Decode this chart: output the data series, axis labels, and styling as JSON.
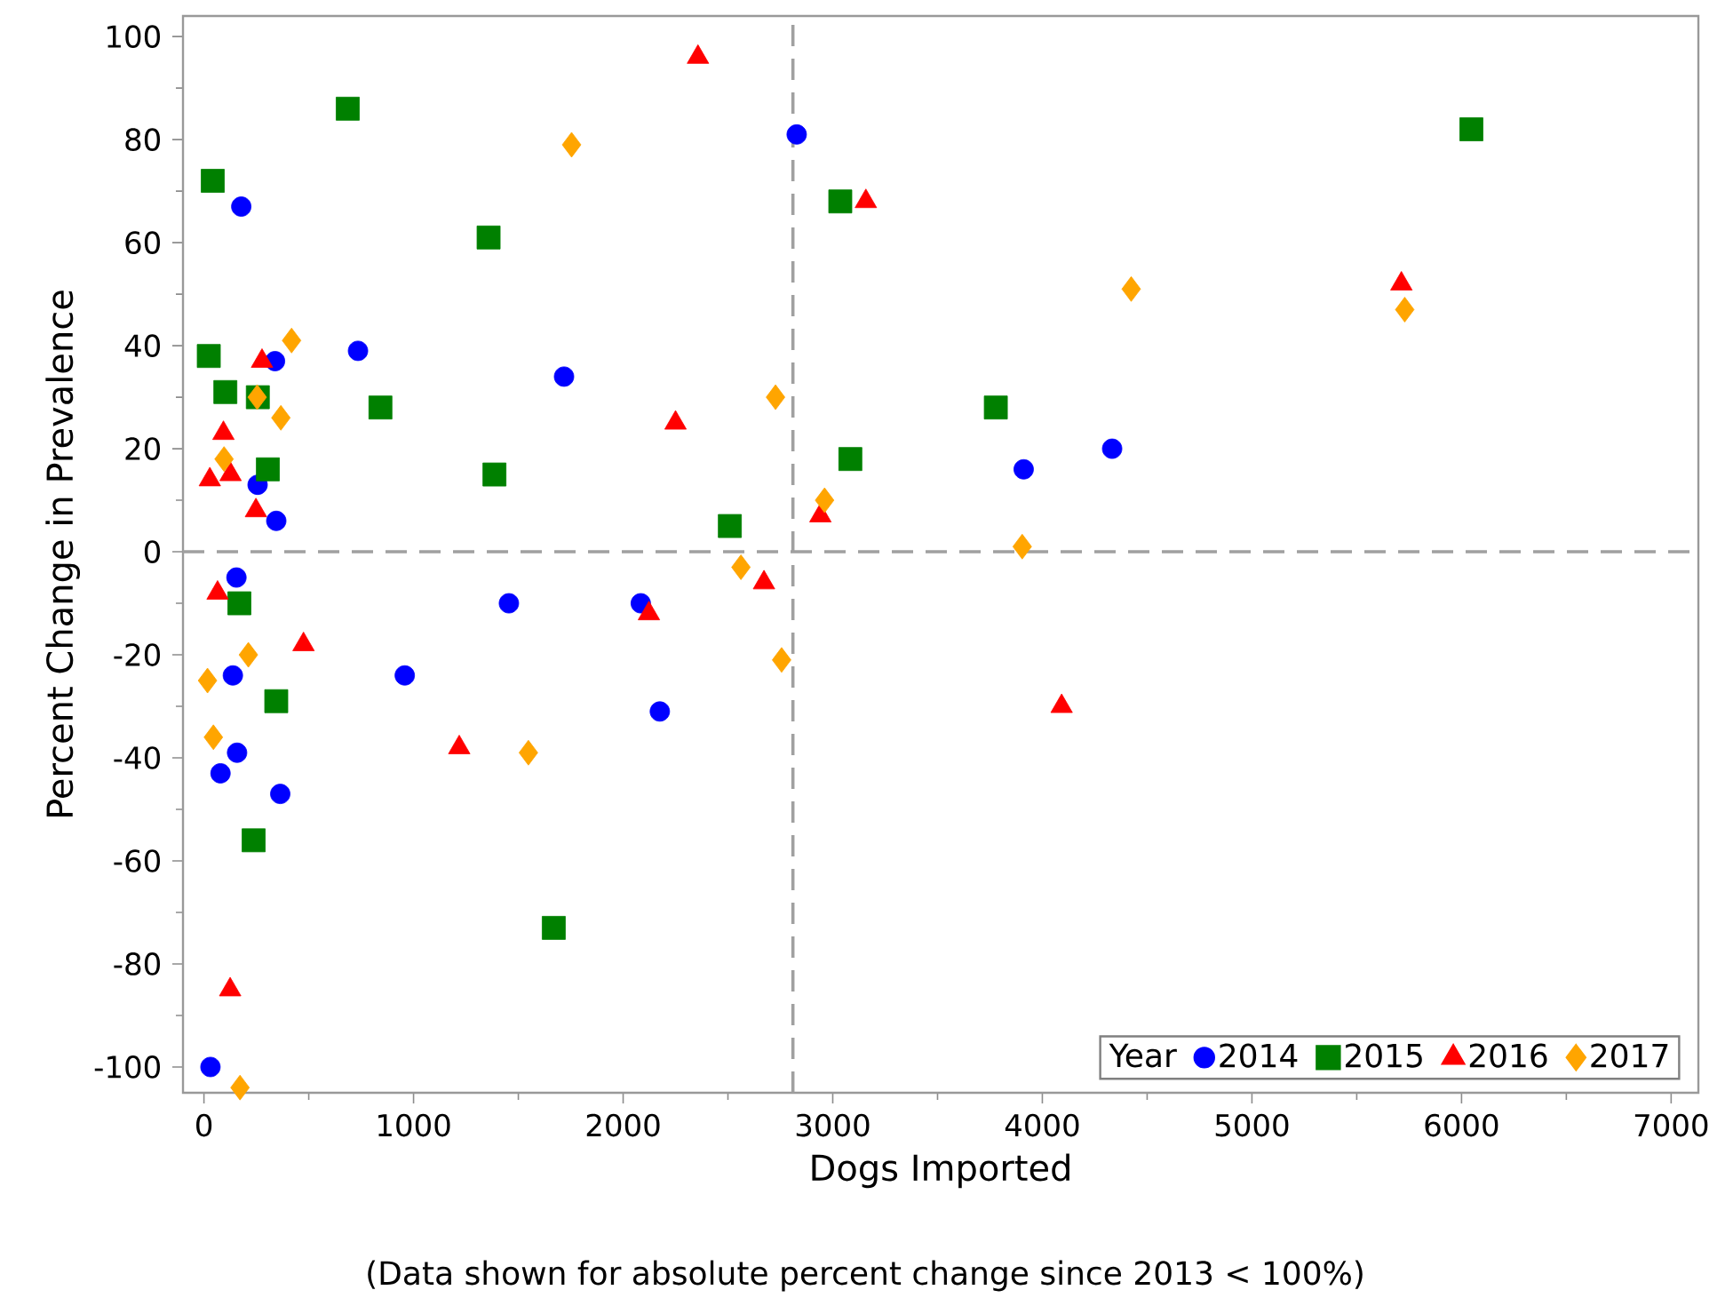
{
  "chart_data": {
    "type": "scatter",
    "xlabel": "Dogs Imported",
    "ylabel": "Percent Change in Prevalence",
    "legend_title": "Year",
    "legend": "bottom right",
    "annotations": [
      "(Data shown for absolute percent change since 2013 < 100%)"
    ],
    "xlim": [
      -100,
      7130
    ],
    "ylim": [
      -105,
      104
    ],
    "xticks": [
      0,
      1000,
      2000,
      3000,
      4000,
      5000,
      6000,
      7000
    ],
    "yticks": [
      -100,
      -80,
      -60,
      -40,
      -20,
      0,
      20,
      40,
      60,
      80,
      100
    ],
    "ref_lines": [
      {
        "axis": "x",
        "value": 2810,
        "color": "#a0a0a0",
        "line_style": "dashed"
      },
      {
        "axis": "y",
        "value": 0,
        "color": "#a0a0a0",
        "line_style": "dashed"
      }
    ],
    "series": [
      {
        "name": "2014",
        "color": "#0000ff",
        "marker": "circle",
        "x": [
          178,
          339,
          735,
          256,
          345,
          155,
          1455,
          138,
          958,
          158,
          79,
          364,
          31,
          1718,
          2828,
          3911,
          4333,
          2084,
          2175
        ],
        "values": [
          67,
          37,
          39,
          13,
          6,
          -5,
          -10,
          -24,
          -24,
          -39,
          -43,
          -47,
          -100,
          34,
          81,
          16,
          20,
          -10,
          -31
        ]
      },
      {
        "name": "2015",
        "color": "#008000",
        "marker": "square",
        "x": [
          686,
          42,
          1358,
          23,
          102,
          257,
          842,
          305,
          1386,
          169,
          345,
          237,
          3036,
          3778,
          3084,
          2509,
          1669,
          6047
        ],
        "values": [
          86,
          72,
          61,
          38,
          31,
          30,
          28,
          16,
          15,
          -10,
          -29,
          -56,
          68,
          28,
          18,
          5,
          -73,
          82
        ]
      },
      {
        "name": "2016",
        "color": "#ff0000",
        "marker": "triangle",
        "x": [
          277,
          93,
          28,
          127,
          248,
          65,
          475,
          125,
          1218,
          2357,
          3158,
          2250,
          2941,
          2672,
          2123,
          4092,
          5713
        ],
        "values": [
          37,
          23,
          14,
          15,
          8,
          -8,
          -18,
          -85,
          -38,
          96,
          68,
          25,
          7,
          -6,
          -12,
          -30,
          52
        ]
      },
      {
        "name": "2017",
        "color": "#ffa500",
        "marker": "diamond",
        "x": [
          418,
          254,
          367,
          96,
          212,
          17,
          45,
          172,
          1548,
          1754,
          4424,
          2727,
          2961,
          3904,
          2562,
          2756,
          5729
        ],
        "values": [
          41,
          30,
          26,
          18,
          -20,
          -25,
          -36,
          -104,
          -39,
          79,
          51,
          30,
          10,
          1,
          -3,
          -21,
          47
        ]
      }
    ]
  }
}
